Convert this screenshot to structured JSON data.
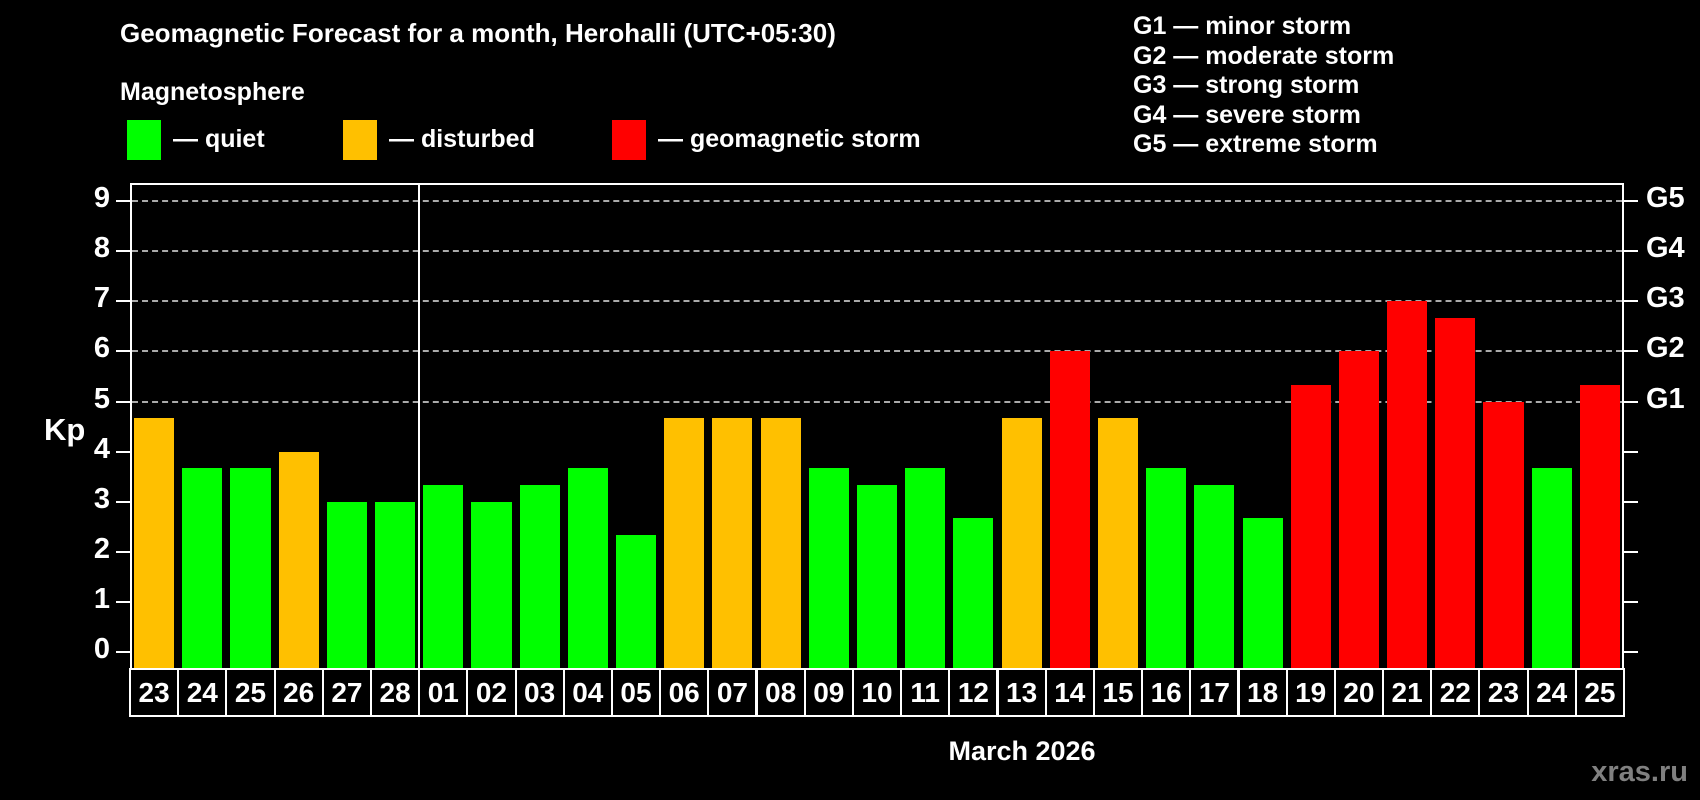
{
  "title": "Geomagnetic Forecast for a month, Herohalli (UTC+05:30)",
  "subtitle": "Magnetosphere",
  "legend": {
    "quiet_label": "— quiet",
    "disturbed_label": "— disturbed",
    "storm_label": "— geomagnetic storm"
  },
  "storm_scale_legend": [
    "G1 — minor storm",
    "G2 — moderate storm",
    "G3 — strong storm",
    "G4 — severe storm",
    "G5 — extreme storm"
  ],
  "colors": {
    "quiet": "#00ff00",
    "disturbed": "#ffc000",
    "storm": "#ff0000",
    "axis": "#ffffff",
    "grid": "#aaaaaa",
    "background": "#000000",
    "watermark": "#808080"
  },
  "axis": {
    "y_label": "Kp",
    "left_tick_labels": [
      "0",
      "1",
      "2",
      "3",
      "4",
      "5",
      "6",
      "7",
      "8",
      "9"
    ],
    "right_labels": [
      {
        "kp": 5,
        "text": "G1"
      },
      {
        "kp": 6,
        "text": "G2"
      },
      {
        "kp": 7,
        "text": "G3"
      },
      {
        "kp": 8,
        "text": "G4"
      },
      {
        "kp": 9,
        "text": "G5"
      }
    ]
  },
  "month_label": "March 2026",
  "watermark": "xras.ru",
  "chart_data": {
    "type": "bar",
    "title": "Geomagnetic Forecast for a month, Herohalli (UTC+05:30)",
    "xlabel": "March 2026",
    "ylabel": "Kp",
    "ylim": [
      0,
      9.4
    ],
    "grid_kp_levels": [
      5,
      6,
      7,
      8,
      9
    ],
    "legend_position": "top",
    "month_divider_index": 6,
    "categories": [
      "23",
      "24",
      "25",
      "26",
      "27",
      "28",
      "01",
      "02",
      "03",
      "04",
      "05",
      "06",
      "07",
      "08",
      "09",
      "10",
      "11",
      "12",
      "13",
      "14",
      "15",
      "16",
      "17",
      "18",
      "19",
      "20",
      "21",
      "22",
      "23",
      "24",
      "25"
    ],
    "values": [
      4.67,
      3.67,
      3.67,
      4,
      3,
      3,
      3.33,
      3,
      3.33,
      3.67,
      2.33,
      4.67,
      4.67,
      4.67,
      3.67,
      3.33,
      3.67,
      2.67,
      4.67,
      6,
      4.67,
      3.67,
      3.33,
      2.67,
      5.33,
      6,
      7,
      6.67,
      5,
      3.67,
      5.33
    ],
    "statuses": [
      "disturbed",
      "quiet",
      "quiet",
      "disturbed",
      "quiet",
      "quiet",
      "quiet",
      "quiet",
      "quiet",
      "quiet",
      "quiet",
      "disturbed",
      "disturbed",
      "disturbed",
      "quiet",
      "quiet",
      "quiet",
      "quiet",
      "disturbed",
      "storm",
      "disturbed",
      "quiet",
      "quiet",
      "quiet",
      "storm",
      "storm",
      "storm",
      "storm",
      "storm",
      "quiet",
      "storm"
    ]
  }
}
